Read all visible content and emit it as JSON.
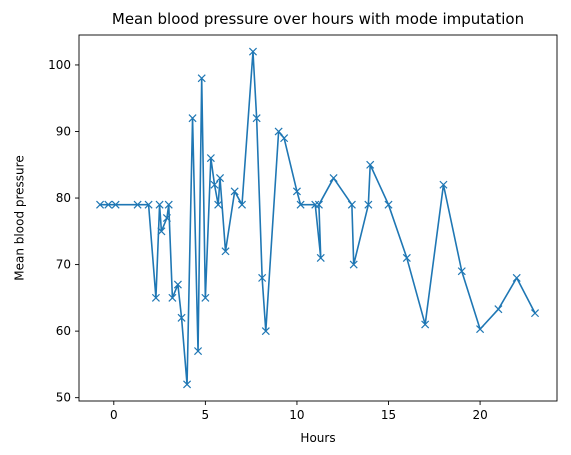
{
  "chart_data": {
    "type": "line",
    "title": "Mean blood pressure over hours with mode imputation",
    "xlabel": "Hours",
    "ylabel": "Mean blood pressure",
    "xlim": [
      -1.9,
      24.2
    ],
    "ylim": [
      49.5,
      104.5
    ],
    "xticks": [
      0,
      5,
      10,
      15,
      20
    ],
    "yticks": [
      50,
      60,
      70,
      80,
      90,
      100
    ],
    "grid": false,
    "marker": "x",
    "color": "#1f77b4",
    "series": [
      {
        "x": [
          -0.75,
          -0.3,
          0.1,
          1.3,
          1.9,
          2.3,
          2.5,
          2.6,
          2.9,
          3.0,
          3.2,
          3.5,
          3.7,
          4.0,
          4.3,
          4.6,
          4.8,
          5.0,
          5.3,
          5.5,
          5.7,
          5.8,
          6.1,
          6.6,
          7.0,
          7.6,
          7.8,
          8.1,
          8.3,
          9.0,
          9.3,
          10.0,
          10.2,
          11.0,
          11.3,
          11.2,
          12.0,
          13.0,
          13.1,
          13.9,
          14.0,
          15.0,
          16.0,
          17.0,
          18.0,
          19.0,
          20.0,
          21.0,
          22.0,
          23.0
        ],
        "y": [
          79,
          79,
          79,
          79,
          79,
          65,
          79,
          75,
          77,
          79,
          65,
          67,
          62,
          52,
          92,
          57,
          98,
          65,
          86,
          82,
          79,
          83,
          72,
          81,
          79,
          102,
          92,
          68,
          60,
          90,
          89,
          81,
          79,
          79,
          71,
          79,
          83,
          79,
          70,
          79,
          85,
          79,
          71,
          61,
          82,
          69,
          60.3,
          63.3,
          68,
          62.7
        ]
      }
    ]
  }
}
